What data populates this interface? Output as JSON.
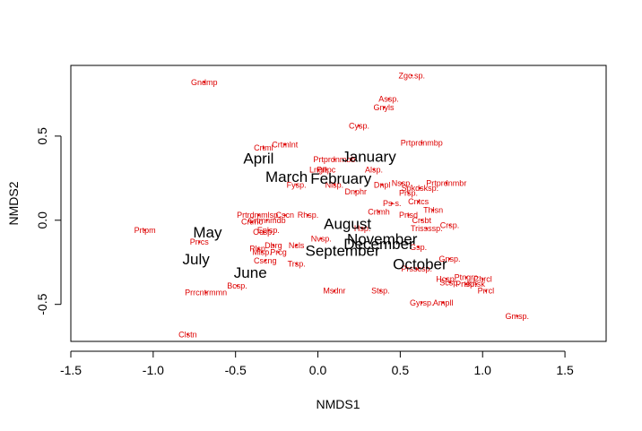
{
  "chart_data": {
    "type": "scatter",
    "title": "",
    "xlabel": "NMDS1",
    "ylabel": "NMDS2",
    "xlim": [
      -1.5,
      1.75
    ],
    "ylim": [
      -0.72,
      0.92
    ],
    "xticks": [
      -1.5,
      -1.0,
      -0.5,
      0.0,
      0.5,
      1.0,
      1.5
    ],
    "xtick_labels": [
      "-1.5",
      "-1.0",
      "-0.5",
      "0.0",
      "0.5",
      "1.0",
      "1.5"
    ],
    "yticks": [
      -0.5,
      0.0,
      0.5
    ],
    "ytick_labels": [
      "-0.5",
      "0.0",
      "0.5"
    ],
    "grid": false,
    "colors": {
      "species": "#dd0000",
      "months": "#000000",
      "axes": "#000000"
    },
    "series": [
      {
        "name": "species",
        "values": [
          {
            "label": "Zgc.sp.",
            "x": 0.57,
            "y": 0.86
          },
          {
            "label": "Gndmp",
            "x": -0.69,
            "y": 0.82
          },
          {
            "label": "Assp.",
            "x": 0.43,
            "y": 0.72
          },
          {
            "label": "Gnyls",
            "x": 0.4,
            "y": 0.67
          },
          {
            "label": "Cysp.",
            "x": 0.25,
            "y": 0.56
          },
          {
            "label": "Prtprdnmbp",
            "x": 0.63,
            "y": 0.46
          },
          {
            "label": "Crtmlnt",
            "x": -0.2,
            "y": 0.45
          },
          {
            "label": "Crtml",
            "x": -0.33,
            "y": 0.43
          },
          {
            "label": "Prtprdnmbb",
            "x": 0.1,
            "y": 0.36
          },
          {
            "label": "Lngll",
            "x": 0.0,
            "y": 0.3
          },
          {
            "label": "Prtpc",
            "x": 0.05,
            "y": 0.3
          },
          {
            "label": "Alsp.",
            "x": 0.34,
            "y": 0.3
          },
          {
            "label": "Fysp.",
            "x": -0.13,
            "y": 0.21
          },
          {
            "label": "Nlsp.",
            "x": 0.1,
            "y": 0.21
          },
          {
            "label": "Dnphr",
            "x": 0.23,
            "y": 0.17
          },
          {
            "label": "Dnpl",
            "x": 0.39,
            "y": 0.21
          },
          {
            "label": "Nssp.",
            "x": 0.51,
            "y": 0.22
          },
          {
            "label": "Spkdsksp.",
            "x": 0.62,
            "y": 0.19
          },
          {
            "label": "Prtprdnmbr",
            "x": 0.78,
            "y": 0.22
          },
          {
            "label": "Prsp.",
            "x": 0.55,
            "y": 0.16
          },
          {
            "label": "Cntcs",
            "x": 0.61,
            "y": 0.11
          },
          {
            "label": "Ps-s.",
            "x": 0.45,
            "y": 0.1
          },
          {
            "label": "Crtmh",
            "x": 0.37,
            "y": 0.05
          },
          {
            "label": "Thlsn",
            "x": 0.7,
            "y": 0.06
          },
          {
            "label": "Prtsd",
            "x": 0.55,
            "y": 0.03
          },
          {
            "label": "Crsbt",
            "x": 0.63,
            "y": 0.0
          },
          {
            "label": "Crsp.",
            "x": 0.8,
            "y": -0.03
          },
          {
            "label": "Trissssp.",
            "x": 0.66,
            "y": -0.05
          },
          {
            "label": "Prtrdmmlsp.",
            "x": -0.36,
            "y": 0.03
          },
          {
            "label": "Crtmnmdb",
            "x": -0.31,
            "y": 0.0
          },
          {
            "label": "Crtmc",
            "x": -0.4,
            "y": -0.01
          },
          {
            "label": "Cscn",
            "x": -0.2,
            "y": 0.03
          },
          {
            "label": "Rhsp.",
            "x": -0.06,
            "y": 0.03
          },
          {
            "label": "Eplsp.",
            "x": -0.3,
            "y": -0.06
          },
          {
            "label": "Ocsp.",
            "x": -0.33,
            "y": -0.07
          },
          {
            "label": "Prtpm",
            "x": -1.05,
            "y": -0.06
          },
          {
            "label": "Prrcs",
            "x": -0.72,
            "y": -0.13
          },
          {
            "label": "Nvsp.",
            "x": 0.02,
            "y": -0.11
          },
          {
            "label": "Hsp.",
            "x": 0.27,
            "y": -0.05
          },
          {
            "label": "Plsp.",
            "x": -0.36,
            "y": -0.17
          },
          {
            "label": "Dbrg",
            "x": -0.27,
            "y": -0.15
          },
          {
            "label": "Prcg",
            "x": -0.24,
            "y": -0.19
          },
          {
            "label": "Ncls",
            "x": -0.13,
            "y": -0.15
          },
          {
            "label": "Mlsp.",
            "x": -0.34,
            "y": -0.19
          },
          {
            "label": "Cscng",
            "x": -0.32,
            "y": -0.24
          },
          {
            "label": "Trsp.",
            "x": -0.13,
            "y": -0.26
          },
          {
            "label": "Gsp.",
            "x": 0.61,
            "y": -0.16
          },
          {
            "label": "Gnsp.",
            "x": 0.8,
            "y": -0.23
          },
          {
            "label": "Prsscsp.",
            "x": 0.6,
            "y": -0.29
          },
          {
            "label": "Hcsp.",
            "x": 0.78,
            "y": -0.35
          },
          {
            "label": "Ptngrp",
            "x": 0.9,
            "y": -0.34
          },
          {
            "label": "Chrcl",
            "x": 1.0,
            "y": -0.35
          },
          {
            "label": "Scsp.",
            "x": 0.8,
            "y": -0.37
          },
          {
            "label": "Prtsp.",
            "x": 0.9,
            "y": -0.38
          },
          {
            "label": "Khsk",
            "x": 0.96,
            "y": -0.38
          },
          {
            "label": "Prrcl",
            "x": 1.02,
            "y": -0.42
          },
          {
            "label": "Msdnr",
            "x": 0.1,
            "y": -0.42
          },
          {
            "label": "Stsp.",
            "x": 0.38,
            "y": -0.42
          },
          {
            "label": "Gyrsp.",
            "x": 0.63,
            "y": -0.49
          },
          {
            "label": "Ampll",
            "x": 0.76,
            "y": -0.49
          },
          {
            "label": "Gmsp.",
            "x": 1.21,
            "y": -0.57
          },
          {
            "label": "Bcsp.",
            "x": -0.49,
            "y": -0.39
          },
          {
            "label": "Prrcntrmmn",
            "x": -0.68,
            "y": -0.43
          },
          {
            "label": "Clstn",
            "x": -0.79,
            "y": -0.68
          }
        ]
      },
      {
        "name": "months",
        "values": [
          {
            "label": "January",
            "x": 0.31,
            "y": 0.38
          },
          {
            "label": "April",
            "x": -0.36,
            "y": 0.37
          },
          {
            "label": "March",
            "x": -0.19,
            "y": 0.26
          },
          {
            "label": "February",
            "x": 0.14,
            "y": 0.25
          },
          {
            "label": "August",
            "x": 0.18,
            "y": -0.02
          },
          {
            "label": "May",
            "x": -0.67,
            "y": -0.07
          },
          {
            "label": "November",
            "x": 0.39,
            "y": -0.11
          },
          {
            "label": "December",
            "x": 0.37,
            "y": -0.14
          },
          {
            "label": "September",
            "x": 0.15,
            "y": -0.18
          },
          {
            "label": "July",
            "x": -0.74,
            "y": -0.23
          },
          {
            "label": "June",
            "x": -0.41,
            "y": -0.31
          },
          {
            "label": "October",
            "x": 0.62,
            "y": -0.26
          }
        ]
      }
    ]
  }
}
